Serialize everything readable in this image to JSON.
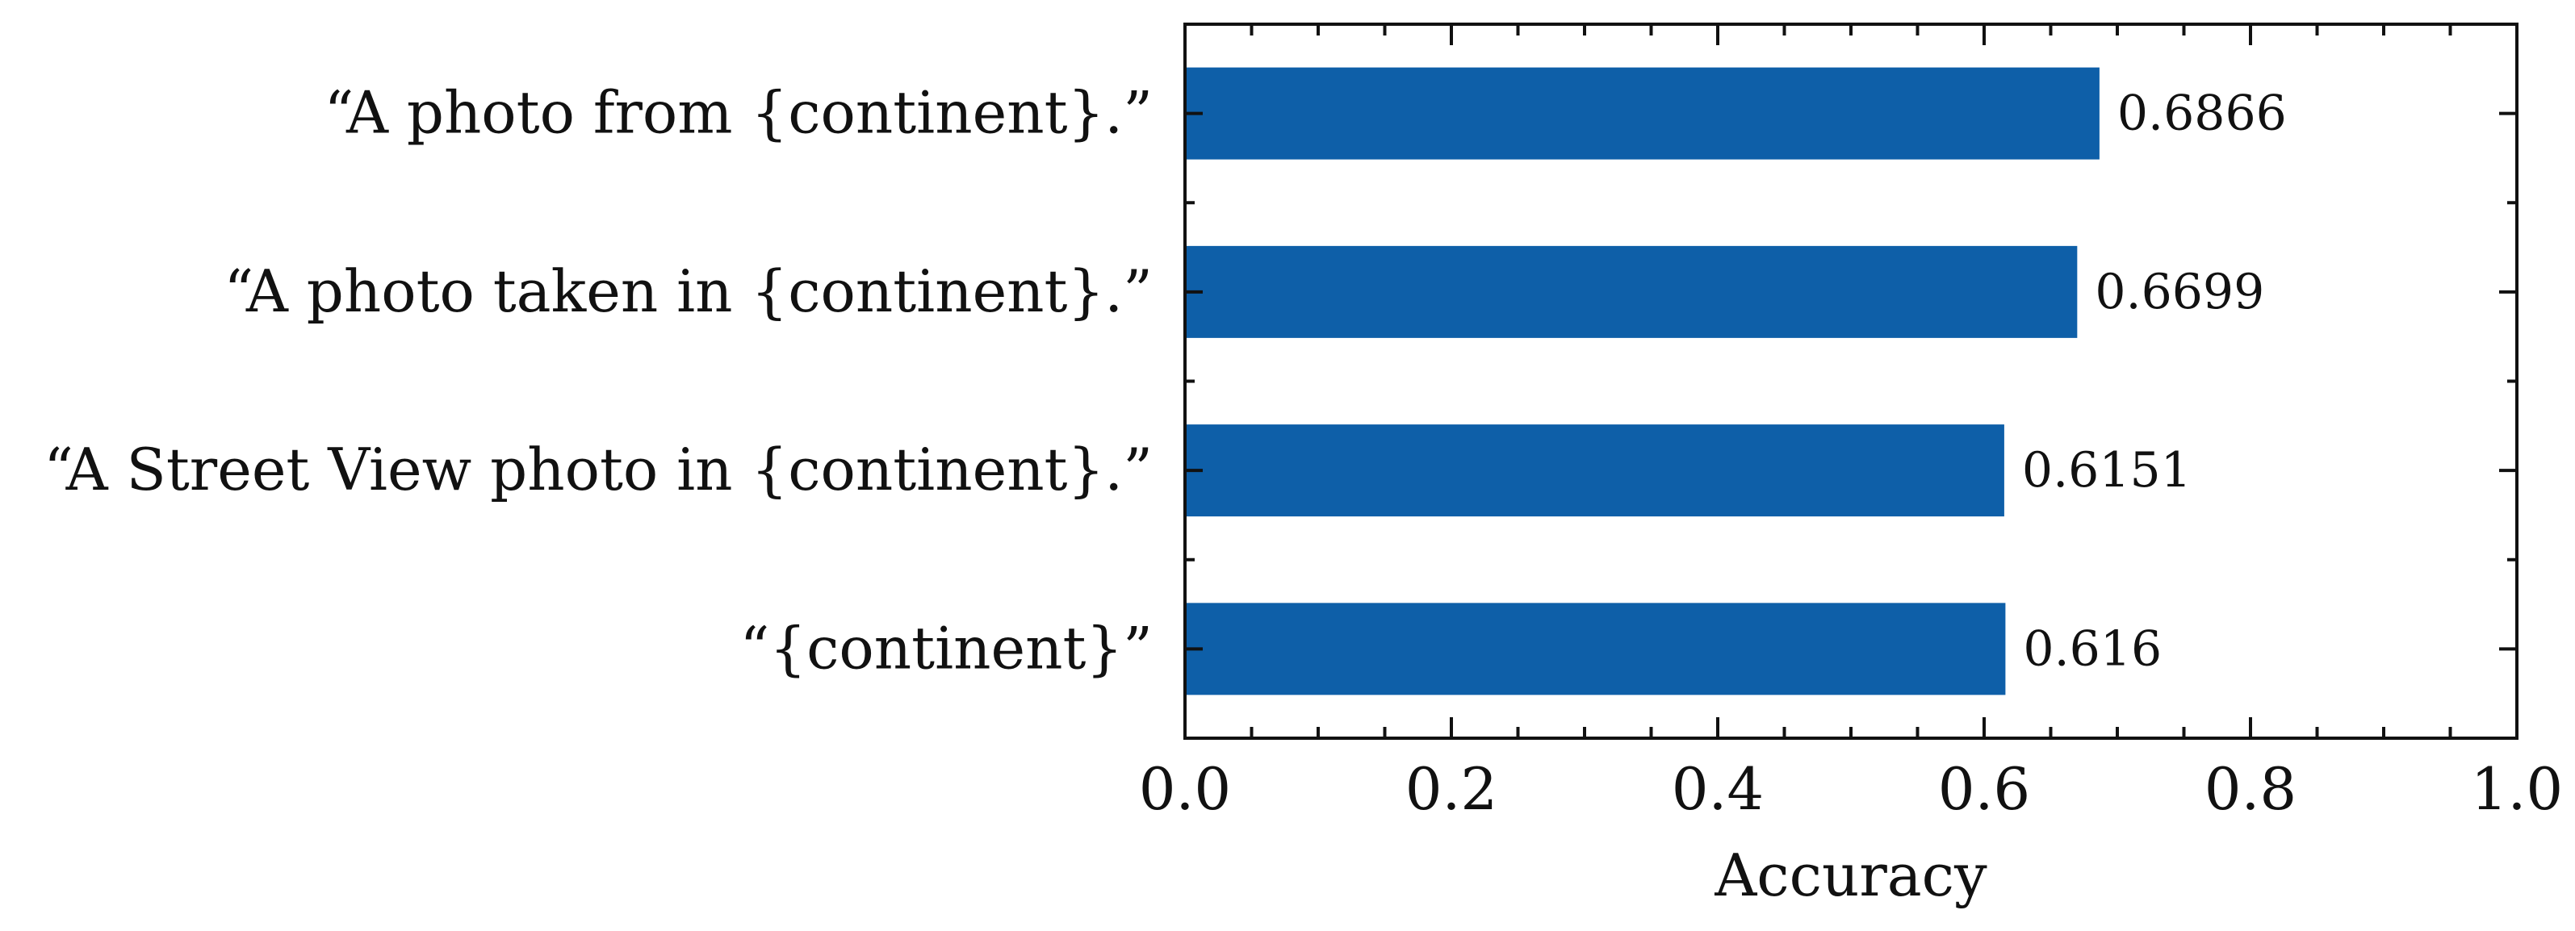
{
  "chart_data": {
    "type": "bar",
    "orientation": "horizontal",
    "categories": [
      "“A photo from {continent}.”",
      "“A photo taken in {continent}.”",
      "“A Street View photo in {continent}.”",
      "“{continent}”"
    ],
    "values": [
      0.6866,
      0.6699,
      0.6151,
      0.616
    ],
    "data_labels": [
      "0.6866",
      "0.6699",
      "0.6151",
      "0.616"
    ],
    "xlabel": "Accuracy",
    "ylabel": "",
    "title": "",
    "xlim": [
      0.0,
      1.0
    ],
    "xticks": [
      0.0,
      0.2,
      0.4,
      0.6,
      0.8,
      1.0
    ],
    "xtick_labels": [
      "0.0",
      "0.2",
      "0.4",
      "0.6",
      "0.8",
      "1.0"
    ],
    "grid": false,
    "bar_color": "#0e5fa8"
  }
}
